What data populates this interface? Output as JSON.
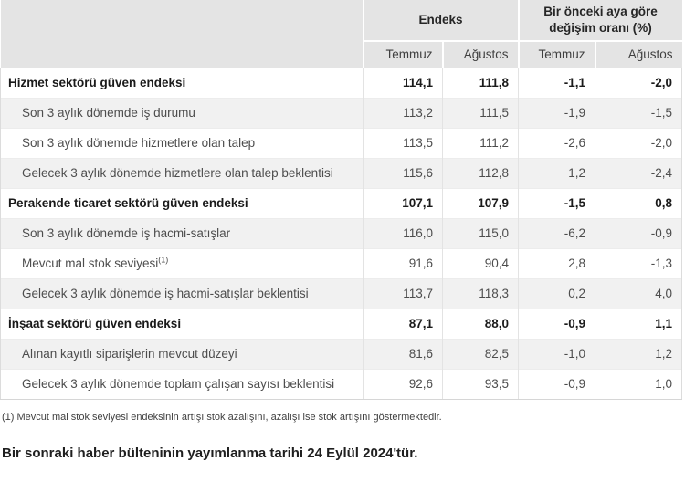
{
  "page": {
    "footnote": "(1) Mevcut mal stok seviyesi endeksinin artışı stok azalışını, azalışı ise stok artışını göstermektedir.",
    "next_release_note": "Bir sonraki haber bülteninin yayımlanma tarihi 24 Eylül 2024'tür."
  },
  "colors": {
    "header_bg": "#e4e4e4",
    "stripe_bg": "#f1f1f1",
    "header_underline": "#cfcfcf",
    "text_primary": "#1a1a1a",
    "text_secondary": "#4d4d4d"
  },
  "table": {
    "column_groups": [
      {
        "label": "Endeks",
        "span": 2
      },
      {
        "label": "Bir önceki aya göre değişim oranı (%)",
        "span": 2
      }
    ],
    "sub_headers": [
      "Temmuz",
      "Ağustos",
      "Temmuz",
      "Ağustos"
    ],
    "rows": [
      {
        "label": "Hizmet sektörü güven endeksi",
        "bold": true,
        "values": [
          "114,1",
          "111,8",
          "-1,1",
          "-2,0"
        ]
      },
      {
        "label": "Son 3 aylık dönemde iş durumu",
        "bold": false,
        "values": [
          "113,2",
          "111,5",
          "-1,9",
          "-1,5"
        ]
      },
      {
        "label": "Son 3 aylık dönemde hizmetlere olan talep",
        "bold": false,
        "values": [
          "113,5",
          "111,2",
          "-2,6",
          "-2,0"
        ]
      },
      {
        "label": "Gelecek 3 aylık dönemde hizmetlere olan talep beklentisi",
        "bold": false,
        "values": [
          "115,6",
          "112,8",
          "1,2",
          "-2,4"
        ]
      },
      {
        "label": "Perakende ticaret sektörü güven endeksi",
        "bold": true,
        "values": [
          "107,1",
          "107,9",
          "-1,5",
          "0,8"
        ]
      },
      {
        "label": "Son 3 aylık dönemde iş hacmi-satışlar",
        "bold": false,
        "values": [
          "116,0",
          "115,0",
          "-6,2",
          "-0,9"
        ]
      },
      {
        "label": "Mevcut mal stok seviyesi",
        "sup": "(1)",
        "bold": false,
        "values": [
          "91,6",
          "90,4",
          "2,8",
          "-1,3"
        ]
      },
      {
        "label": "Gelecek 3 aylık dönemde iş hacmi-satışlar beklentisi",
        "bold": false,
        "values": [
          "113,7",
          "118,3",
          "0,2",
          "4,0"
        ]
      },
      {
        "label": "İnşaat sektörü güven endeksi",
        "bold": true,
        "values": [
          "87,1",
          "88,0",
          "-0,9",
          "1,1"
        ]
      },
      {
        "label": "Alınan kayıtlı siparişlerin mevcut düzeyi",
        "bold": false,
        "values": [
          "81,6",
          "82,5",
          "-1,0",
          "1,2"
        ]
      },
      {
        "label": "Gelecek 3 aylık dönemde toplam çalışan sayısı beklentisi",
        "bold": false,
        "values": [
          "92,6",
          "93,5",
          "-0,9",
          "1,0"
        ]
      }
    ]
  }
}
